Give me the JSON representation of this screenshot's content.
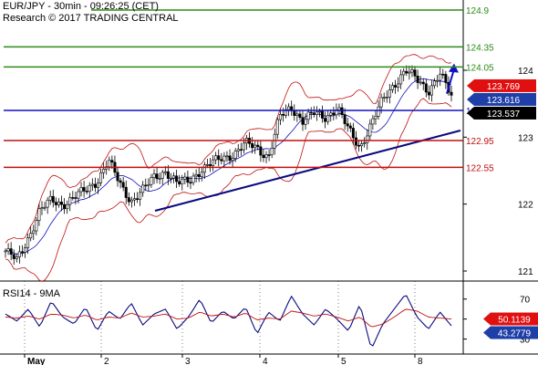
{
  "header": {
    "line1": "EUR/JPY - 30min - 09:26:25 (CET)",
    "line2": "Research © 2017 TRADING CENTRAL"
  },
  "rsi_label": "RSI14 - 9MA",
  "chart_data": [
    {
      "type": "candlestick",
      "symbol": "EUR/JPY",
      "timeframe": "30min",
      "x_tick_labels": [
        "May",
        "2",
        "3",
        "4",
        "5",
        "8"
      ],
      "y_ticks": [
        121,
        122,
        123,
        124
      ],
      "ylim": [
        120.85,
        125.05
      ],
      "grid": false,
      "overlays": [
        "Bollinger Bands",
        "moving average",
        "trendline"
      ],
      "levels": [
        {
          "value": 124.9,
          "label": "124.9",
          "color": "#2e8b1a"
        },
        {
          "value": 124.35,
          "label": "124.35",
          "color": "#2e8b1a"
        },
        {
          "value": 124.05,
          "label": "124.05",
          "color": "#2e8b1a"
        },
        {
          "value": 123.4,
          "label": "123.4",
          "color": "#1010c0"
        },
        {
          "value": 122.95,
          "label": "122.95",
          "color": "#c01010"
        },
        {
          "value": 122.55,
          "label": "122.55",
          "color": "#c01010"
        }
      ],
      "price_boxes": [
        {
          "value": 123.769,
          "label": "123.769",
          "color": "#e01010"
        },
        {
          "value": 123.616,
          "label": "123.616",
          "color": "#1f3fa8"
        },
        {
          "value": 123.537,
          "label": "123.537",
          "color": "#000000"
        }
      ],
      "close_path": [
        121.3,
        121.15,
        121.5,
        121.9,
        122.05,
        122.0,
        122.1,
        122.2,
        122.35,
        122.65,
        122.3,
        122.05,
        122.2,
        122.4,
        122.5,
        122.3,
        122.35,
        122.5,
        122.6,
        122.7,
        122.75,
        122.9,
        122.85,
        122.7,
        123.3,
        123.45,
        123.25,
        123.35,
        123.3,
        123.45,
        123.1,
        122.85,
        123.2,
        123.55,
        123.8,
        124.0,
        123.85,
        123.7,
        123.95,
        123.6
      ],
      "trendline": {
        "from": 121.9,
        "to": 123.1
      },
      "forecast_arrow": {
        "from": 123.65,
        "to": 124.1
      }
    },
    {
      "type": "line",
      "title": "RSI14 - 9MA",
      "y_ticks": [
        30,
        50,
        70
      ],
      "ylim": [
        15,
        88
      ],
      "series": [
        {
          "color": "#0a0a80",
          "values": [
            55,
            48,
            60,
            42,
            68,
            52,
            45,
            62,
            38,
            58,
            50,
            66,
            44,
            55,
            60,
            40,
            52,
            70,
            46,
            58,
            50,
            62,
            35,
            57,
            48,
            73,
            55,
            44,
            60,
            50,
            38,
            65,
            20,
            45,
            60,
            75,
            52,
            40,
            57,
            43.28
          ]
        },
        {
          "color": "#c01010",
          "values": [
            52,
            51,
            53,
            50,
            55,
            54,
            51,
            54,
            49,
            52,
            51,
            56,
            52,
            53,
            55,
            50,
            51,
            57,
            53,
            55,
            52,
            56,
            49,
            51,
            50,
            58,
            56,
            53,
            55,
            52,
            48,
            52,
            42,
            45,
            52,
            60,
            58,
            52,
            51,
            50.12
          ]
        }
      ],
      "value_boxes": [
        {
          "value": 50.1139,
          "label": "50.1139",
          "color": "#e01010"
        },
        {
          "value": 43.2779,
          "label": "43.2779",
          "color": "#1f3fa8"
        }
      ]
    }
  ]
}
